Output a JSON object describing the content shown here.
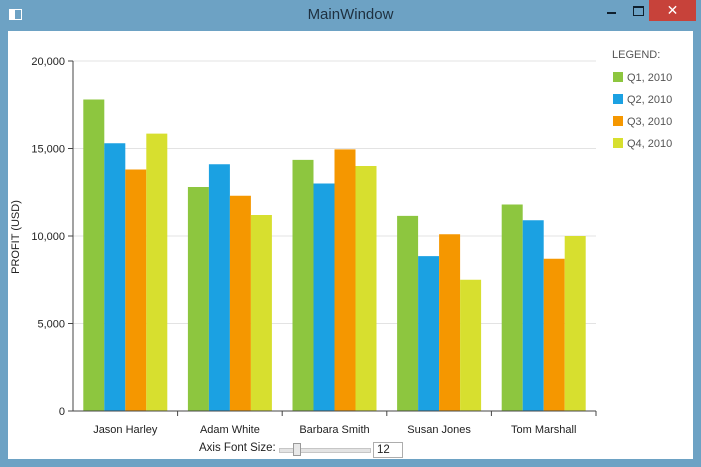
{
  "window": {
    "title": "MainWindow",
    "close_symbol": "✕"
  },
  "chart_data": {
    "type": "bar",
    "categories": [
      "Jason Harley",
      "Adam White",
      "Barbara Smith",
      "Susan Jones",
      "Tom Marshall"
    ],
    "series": [
      {
        "name": "Q1, 2010",
        "color": "#8dc63f",
        "values": [
          17800,
          12800,
          14350,
          11150,
          11800
        ]
      },
      {
        "name": "Q2, 2010",
        "color": "#1ba1e2",
        "values": [
          15300,
          14100,
          13000,
          8850,
          10900
        ]
      },
      {
        "name": "Q3, 2010",
        "color": "#f59700",
        "values": [
          13800,
          12300,
          14950,
          10100,
          8700
        ]
      },
      {
        "name": "Q4, 2010",
        "color": "#d7df2f",
        "values": [
          15850,
          11200,
          14000,
          7500,
          10000
        ]
      }
    ],
    "ylabel": "PROFIT (USD)",
    "xlabel": "",
    "ylim": [
      0,
      20000
    ],
    "yticks": [
      0,
      5000,
      10000,
      15000,
      20000
    ],
    "ytick_labels": [
      "0",
      "5,000",
      "10,000",
      "15,000",
      "20,000"
    ],
    "legend_title": "LEGEND:",
    "legend_position": "top-right",
    "grid": true
  },
  "controls": {
    "axis_font_label": "Axis Font Size:",
    "axis_font_value": "12",
    "slider_min": 8,
    "slider_max": 40,
    "slider_value": 12
  }
}
